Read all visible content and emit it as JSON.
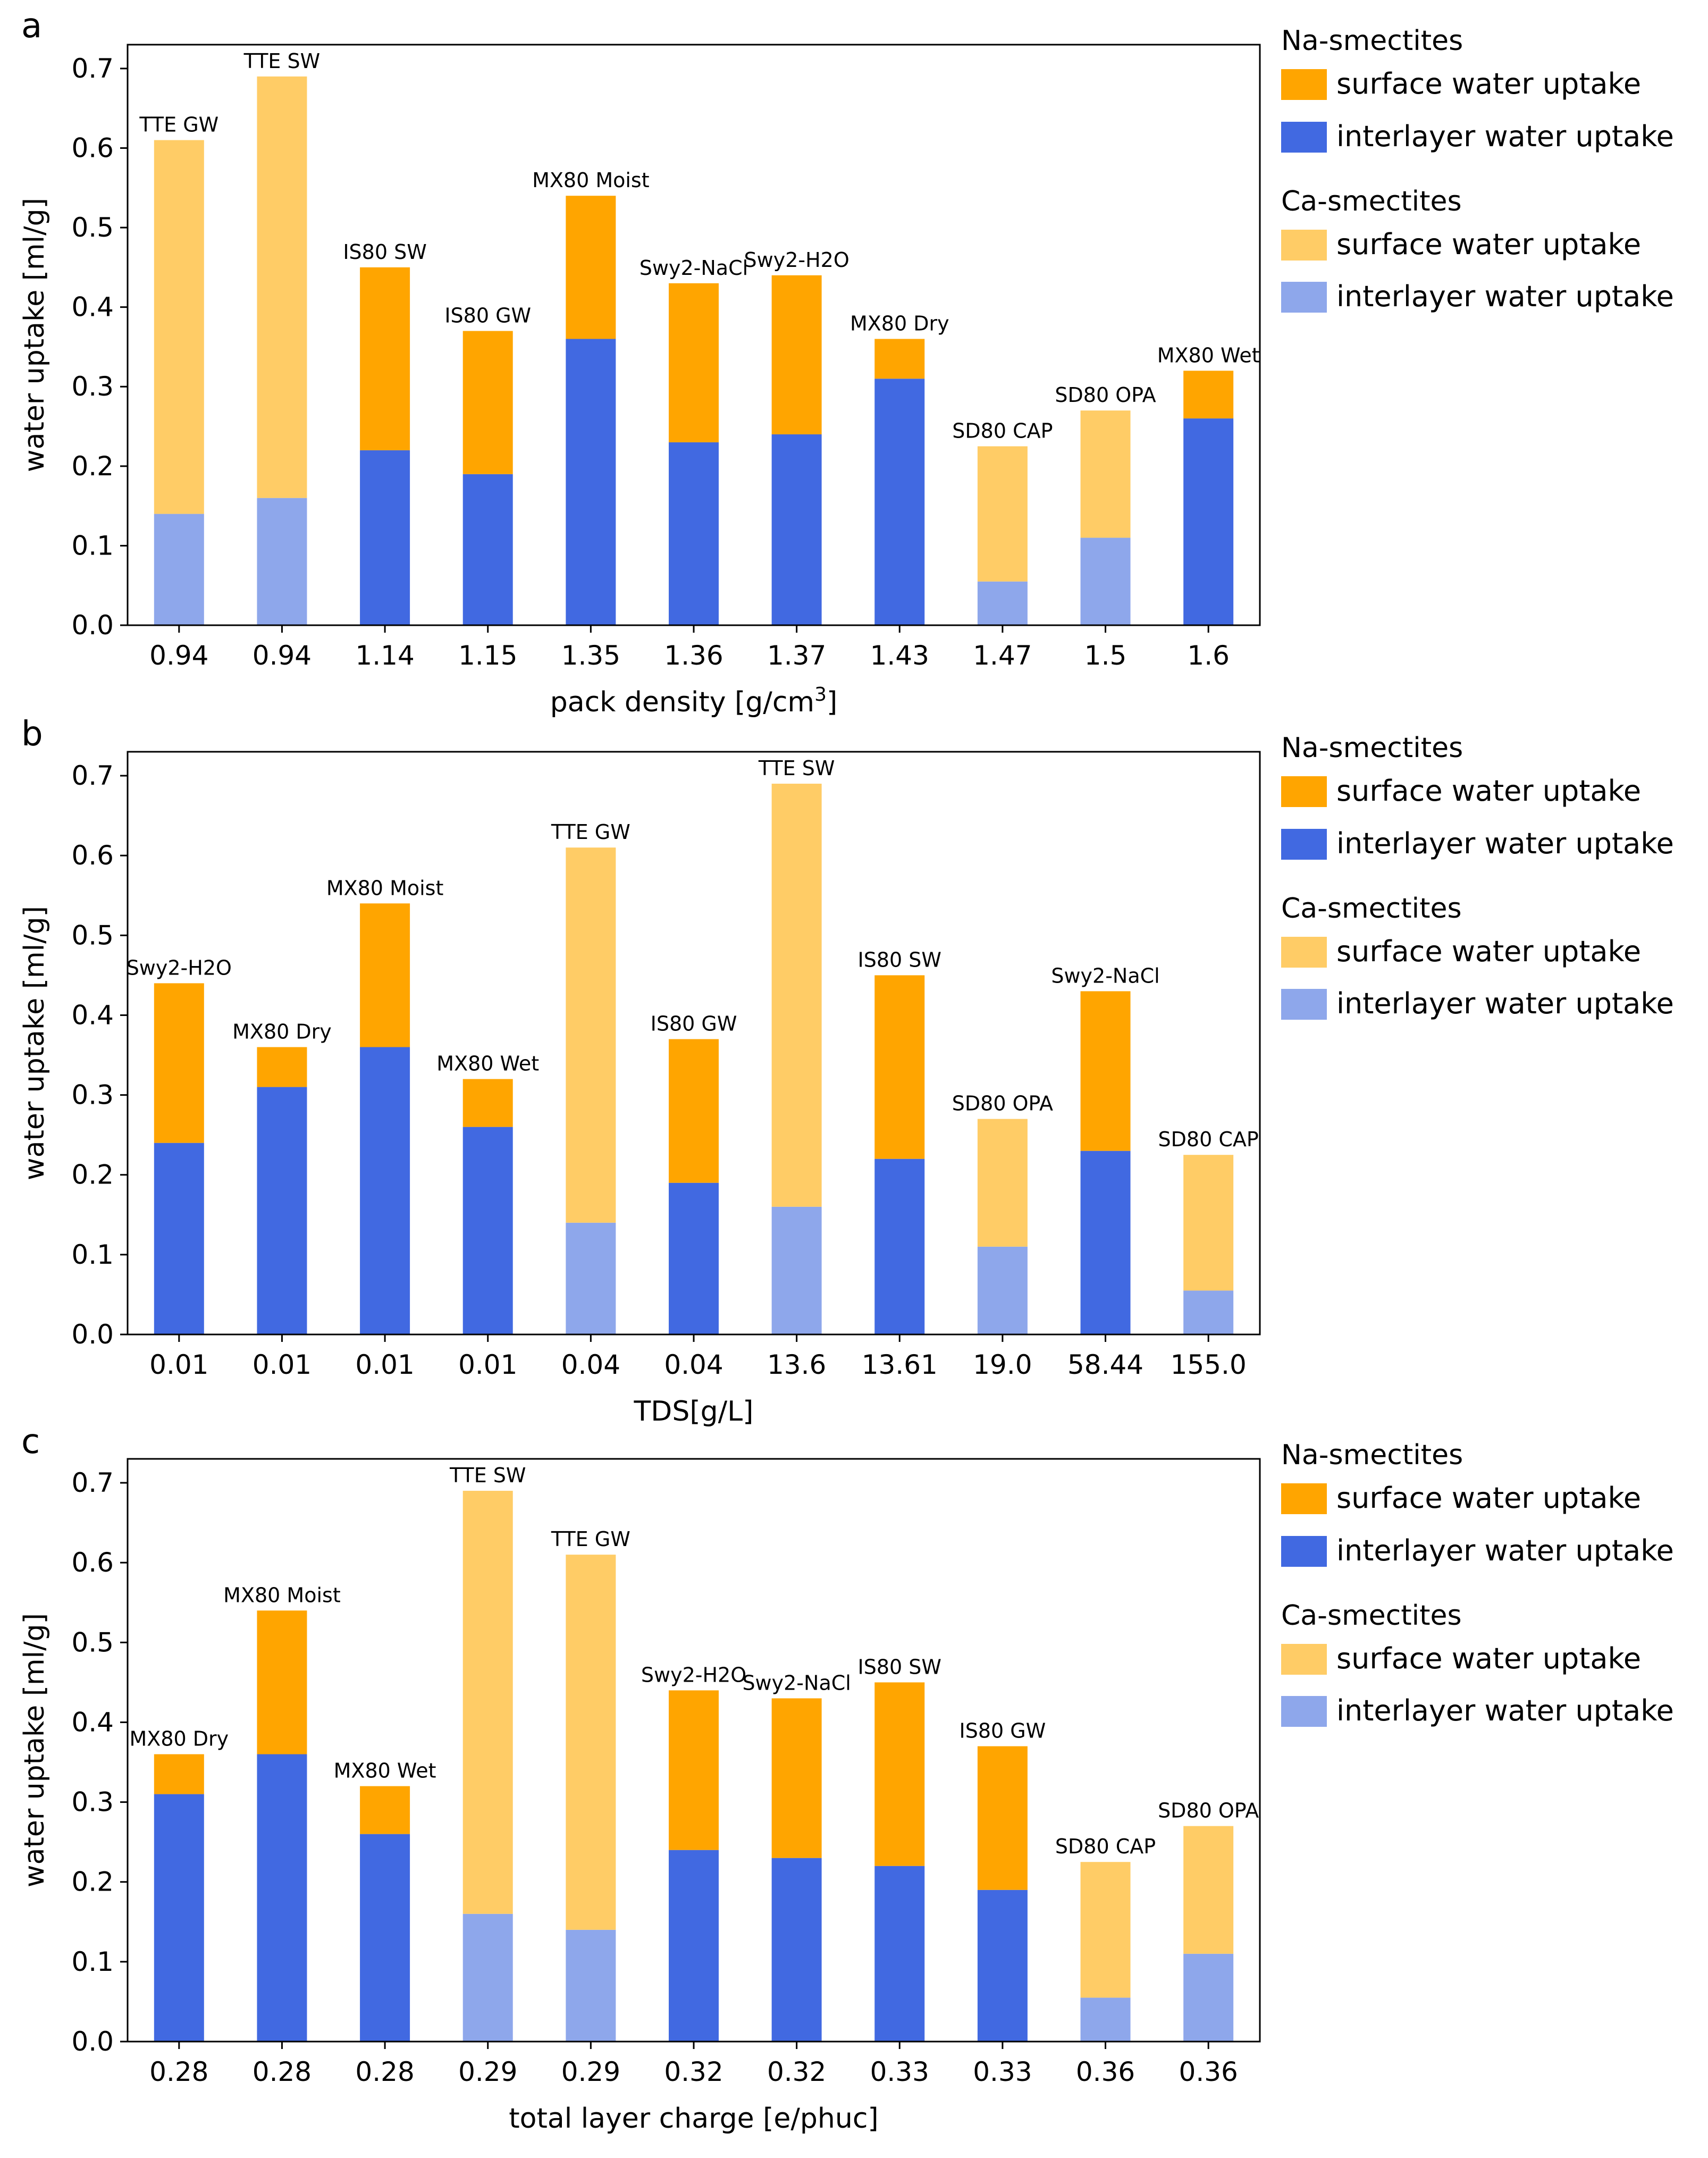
{
  "legend": {
    "na_title": "Na-smectites",
    "ca_title": "Ca-smectites",
    "surface_label": "surface water uptake",
    "interlayer_label": "interlayer water uptake"
  },
  "colors": {
    "na_surface": "#FFA500",
    "na_interlayer": "#4169E1",
    "ca_surface": "#FFCC66",
    "ca_interlayer": "#8EA7EB"
  },
  "chart_data": [
    {
      "type": "bar",
      "stacked": true,
      "panel": "a",
      "title": "",
      "xlabel": "pack density [g/cm",
      "xlabel_sup": "3",
      "xlabel_end": "]",
      "ylabel": "water uptake [ml/g]",
      "ylim": [
        0,
        0.73
      ],
      "yticks": [
        "0.0",
        "0.1",
        "0.2",
        "0.3",
        "0.4",
        "0.5",
        "0.6",
        "0.7"
      ],
      "categories": [
        "0.94",
        "0.94",
        "1.14",
        "1.15",
        "1.35",
        "1.36",
        "1.37",
        "1.43",
        "1.47",
        "1.5",
        "1.6"
      ],
      "labels": [
        "TTE GW",
        "TTE SW",
        "IS80 SW",
        "IS80 GW",
        "MX80 Moist",
        "Swy2-NaCl",
        "Swy2-H2O",
        "MX80 Dry",
        "SD80 CAP",
        "SD80 OPA",
        "MX80 Wet"
      ],
      "group": [
        "Ca",
        "Ca",
        "Na",
        "Na",
        "Na",
        "Na",
        "Na",
        "Na",
        "Ca",
        "Ca",
        "Na"
      ],
      "series": [
        {
          "name": "interlayer water uptake",
          "values": [
            0.14,
            0.16,
            0.22,
            0.19,
            0.36,
            0.23,
            0.24,
            0.31,
            0.055,
            0.11,
            0.26
          ]
        },
        {
          "name": "surface water uptake",
          "values": [
            0.47,
            0.53,
            0.23,
            0.18,
            0.18,
            0.2,
            0.2,
            0.05,
            0.17,
            0.16,
            0.06
          ]
        }
      ]
    },
    {
      "type": "bar",
      "stacked": true,
      "panel": "b",
      "title": "",
      "xlabel": "TDS[g/L]",
      "xlabel_sup": "",
      "xlabel_end": "",
      "ylabel": "water uptake [ml/g]",
      "ylim": [
        0,
        0.73
      ],
      "yticks": [
        "0.0",
        "0.1",
        "0.2",
        "0.3",
        "0.4",
        "0.5",
        "0.6",
        "0.7"
      ],
      "categories": [
        "0.01",
        "0.01",
        "0.01",
        "0.01",
        "0.04",
        "0.04",
        "13.6",
        "13.61",
        "19.0",
        "58.44",
        "155.0"
      ],
      "labels": [
        "Swy2-H2O",
        "MX80 Dry",
        "MX80 Moist",
        "MX80 Wet",
        "TTE GW",
        "IS80 GW",
        "TTE SW",
        "IS80 SW",
        "SD80 OPA",
        "Swy2-NaCl",
        "SD80 CAP"
      ],
      "group": [
        "Na",
        "Na",
        "Na",
        "Na",
        "Ca",
        "Na",
        "Ca",
        "Na",
        "Ca",
        "Na",
        "Ca"
      ],
      "series": [
        {
          "name": "interlayer water uptake",
          "values": [
            0.24,
            0.31,
            0.36,
            0.26,
            0.14,
            0.19,
            0.16,
            0.22,
            0.11,
            0.23,
            0.055
          ]
        },
        {
          "name": "surface water uptake",
          "values": [
            0.2,
            0.05,
            0.18,
            0.06,
            0.47,
            0.18,
            0.53,
            0.23,
            0.16,
            0.2,
            0.17
          ]
        }
      ]
    },
    {
      "type": "bar",
      "stacked": true,
      "panel": "c",
      "title": "",
      "xlabel": "total layer charge [e/phuc]",
      "xlabel_sup": "",
      "xlabel_end": "",
      "ylabel": "water uptake [ml/g]",
      "ylim": [
        0,
        0.73
      ],
      "yticks": [
        "0.0",
        "0.1",
        "0.2",
        "0.3",
        "0.4",
        "0.5",
        "0.6",
        "0.7"
      ],
      "categories": [
        "0.28",
        "0.28",
        "0.28",
        "0.29",
        "0.29",
        "0.32",
        "0.32",
        "0.33",
        "0.33",
        "0.36",
        "0.36"
      ],
      "labels": [
        "MX80 Dry",
        "MX80 Moist",
        "MX80 Wet",
        "TTE SW",
        "TTE GW",
        "Swy2-H2O",
        "Swy2-NaCl",
        "IS80 SW",
        "IS80 GW",
        "SD80 CAP",
        "SD80 OPA"
      ],
      "group": [
        "Na",
        "Na",
        "Na",
        "Ca",
        "Ca",
        "Na",
        "Na",
        "Na",
        "Na",
        "Ca",
        "Ca"
      ],
      "series": [
        {
          "name": "interlayer water uptake",
          "values": [
            0.31,
            0.36,
            0.26,
            0.16,
            0.14,
            0.24,
            0.23,
            0.22,
            0.19,
            0.055,
            0.11
          ]
        },
        {
          "name": "surface water uptake",
          "values": [
            0.05,
            0.18,
            0.06,
            0.53,
            0.47,
            0.2,
            0.2,
            0.23,
            0.18,
            0.17,
            0.16
          ]
        }
      ]
    }
  ]
}
